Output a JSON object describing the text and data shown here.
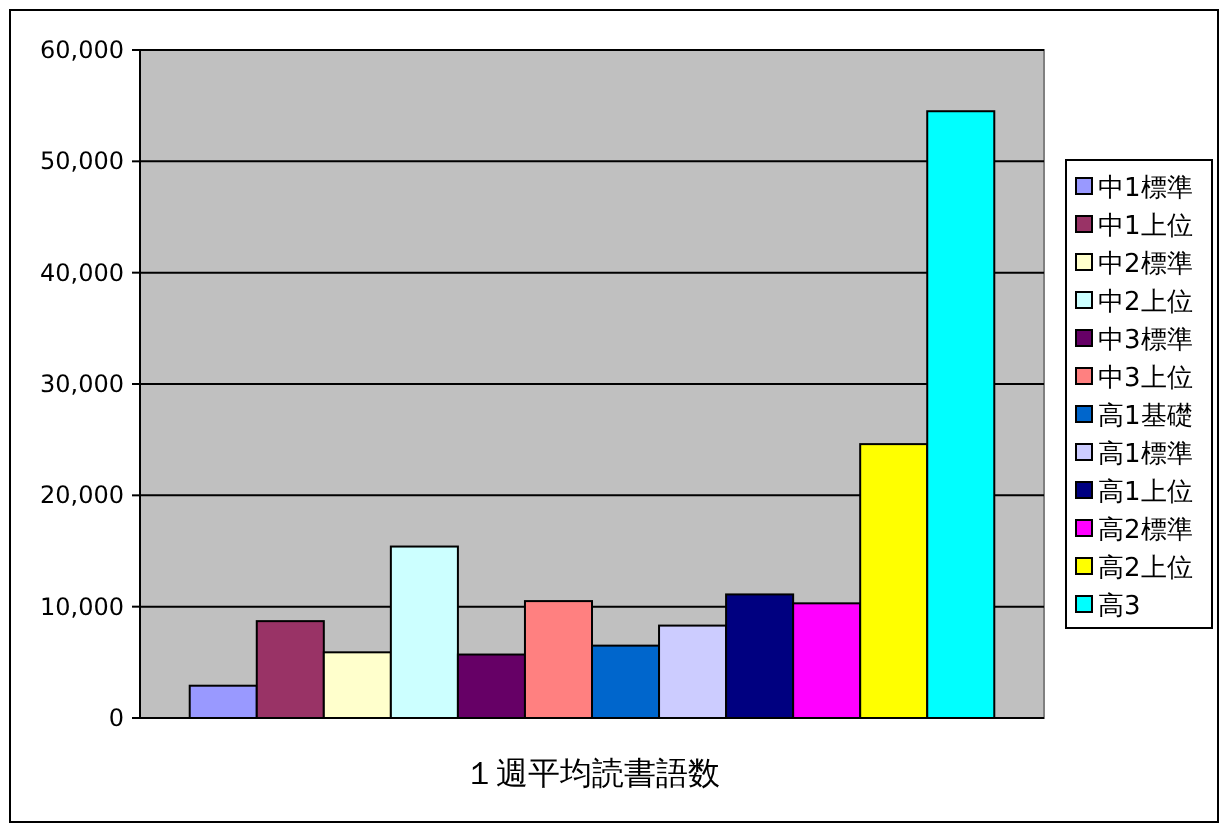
{
  "chart_data": {
    "type": "bar",
    "categories": [
      "１週平均読書語数"
    ],
    "series": [
      {
        "name": "中1標準",
        "color": "#9999ff",
        "values": [
          2900
        ]
      },
      {
        "name": "中1上位",
        "color": "#993366",
        "values": [
          8700
        ]
      },
      {
        "name": "中2標準",
        "color": "#ffffcc",
        "values": [
          5900
        ]
      },
      {
        "name": "中2上位",
        "color": "#ccffff",
        "values": [
          15400
        ]
      },
      {
        "name": "中3標準",
        "color": "#660066",
        "values": [
          5700
        ]
      },
      {
        "name": "中3上位",
        "color": "#ff8080",
        "values": [
          10500
        ]
      },
      {
        "name": "高1基礎",
        "color": "#0066cc",
        "values": [
          6500
        ]
      },
      {
        "name": "高1標準",
        "color": "#ccccff",
        "values": [
          8300
        ]
      },
      {
        "name": "高1上位",
        "color": "#000080",
        "values": [
          11100
        ]
      },
      {
        "name": "高2標準",
        "color": "#ff00ff",
        "values": [
          10300
        ]
      },
      {
        "name": "高2上位",
        "color": "#ffff00",
        "values": [
          24600
        ]
      },
      {
        "name": "高3",
        "color": "#00ffff",
        "values": [
          54500
        ]
      }
    ],
    "ylim": [
      0,
      60000
    ],
    "yticks": [
      0,
      {
        "value": 10000,
        "label": "10,000"
      },
      {
        "value": 20000,
        "label": "20,000"
      },
      {
        "value": 30000,
        "label": "30,000"
      },
      {
        "value": 40000,
        "label": "40,000"
      },
      {
        "value": 50000,
        "label": "50,000"
      },
      {
        "value": 60000,
        "label": "60,000"
      }
    ],
    "grid": "y",
    "legend": "right"
  }
}
